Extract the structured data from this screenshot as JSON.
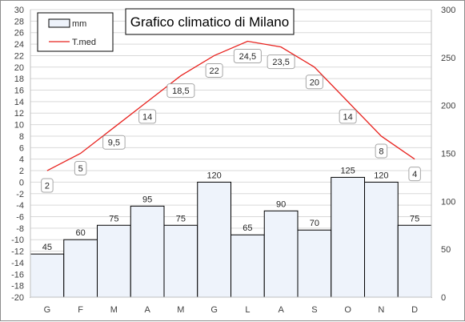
{
  "chart_data": {
    "type": "bar",
    "title": "Grafico climatico di Milano",
    "categories": [
      "G",
      "F",
      "M",
      "A",
      "M",
      "G",
      "L",
      "A",
      "S",
      "O",
      "N",
      "D"
    ],
    "series": [
      {
        "name": "mm",
        "type": "bar",
        "axis": "right",
        "values": [
          45,
          60,
          75,
          95,
          75,
          120,
          65,
          90,
          70,
          125,
          120,
          75
        ],
        "labels": [
          "45",
          "60",
          "75",
          "95",
          "75",
          "120",
          "65",
          "90",
          "70",
          "125",
          "120",
          "75"
        ]
      },
      {
        "name": "T.med",
        "type": "line",
        "axis": "left",
        "values": [
          2,
          5,
          9.5,
          14,
          18.5,
          22,
          24.5,
          23.5,
          20,
          14,
          8,
          4
        ],
        "labels": [
          "2",
          "5",
          "9,5",
          "14",
          "18,5",
          "22",
          "24,5",
          "23,5",
          "20",
          "14",
          "8",
          "4"
        ]
      }
    ],
    "y_left": {
      "min": -20,
      "max": 30,
      "step": 2
    },
    "y_right": {
      "min": 0,
      "max": 300,
      "step": 50
    },
    "grid": true,
    "legend": "top-left",
    "colors": {
      "bar_fill": "#eef3fb",
      "bar_stroke": "#000000",
      "line": "#e8231f",
      "grid": "#d9d9d9",
      "axis": "#bfbfbf"
    }
  }
}
